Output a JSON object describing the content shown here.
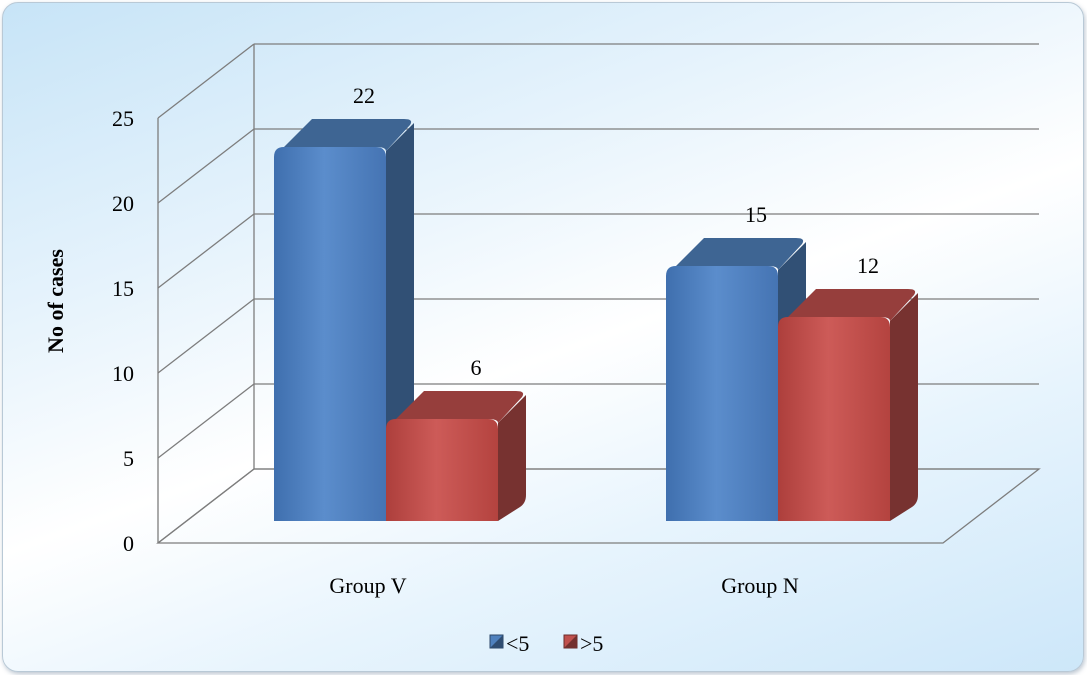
{
  "chart_data": {
    "type": "bar",
    "categories": [
      "Group V",
      "Group N"
    ],
    "series": [
      {
        "name": "<5",
        "values": [
          22,
          15
        ],
        "color": "#4f81bd"
      },
      {
        "name": ">5",
        "values": [
          6,
          12
        ],
        "color": "#c0504d"
      }
    ],
    "ylabel": "No of cases",
    "ylim": [
      0,
      25
    ],
    "yticks": [
      0,
      5,
      10,
      15,
      20,
      25
    ],
    "grid": true,
    "legend_position": "bottom",
    "three_d": true
  }
}
